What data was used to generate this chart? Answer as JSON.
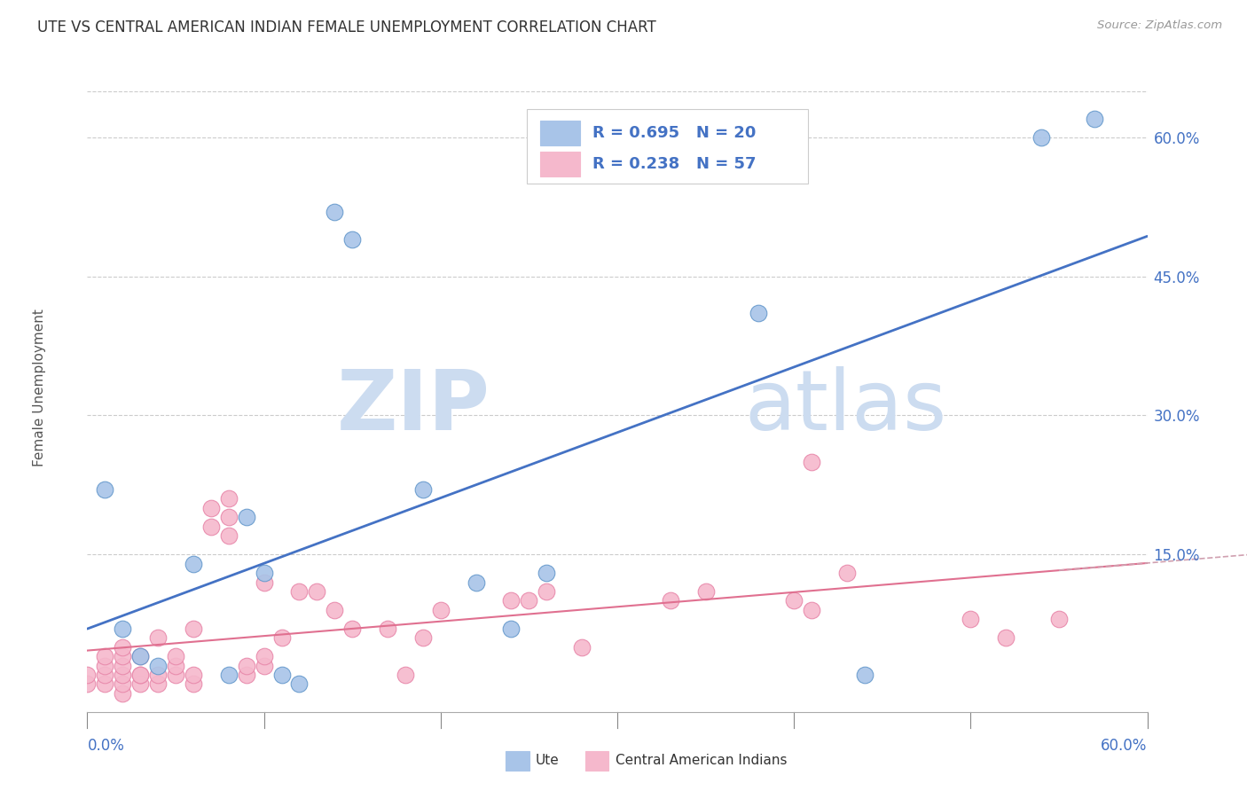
{
  "title": "UTE VS CENTRAL AMERICAN INDIAN FEMALE UNEMPLOYMENT CORRELATION CHART",
  "source": "Source: ZipAtlas.com",
  "ylabel": "Female Unemployment",
  "right_yticks": [
    0.0,
    0.15,
    0.3,
    0.45,
    0.6
  ],
  "right_ytick_labels": [
    "",
    "15.0%",
    "30.0%",
    "45.0%",
    "60.0%"
  ],
  "xlim": [
    0.0,
    0.6
  ],
  "ylim": [
    -0.02,
    0.68
  ],
  "ute_color": "#a8c4e8",
  "ute_edge_color": "#6699cc",
  "central_color": "#f5b8cc",
  "central_edge_color": "#e888aa",
  "ute_line_color": "#4472c4",
  "central_line_color": "#e07090",
  "central_dash_color": "#d0a0b0",
  "legend_text_color": "#4472c4",
  "ute_R": 0.695,
  "ute_N": 20,
  "central_R": 0.238,
  "central_N": 57,
  "watermark_zip": "ZIP",
  "watermark_atlas": "atlas",
  "watermark_color": "#ccdcf0",
  "background_color": "#ffffff",
  "grid_color": "#cccccc",
  "ute_x": [
    0.01,
    0.02,
    0.03,
    0.04,
    0.06,
    0.08,
    0.09,
    0.1,
    0.11,
    0.12,
    0.14,
    0.15,
    0.19,
    0.22,
    0.24,
    0.26,
    0.38,
    0.44,
    0.54,
    0.57
  ],
  "ute_y": [
    0.22,
    0.07,
    0.04,
    0.03,
    0.14,
    0.02,
    0.19,
    0.13,
    0.02,
    0.01,
    0.52,
    0.49,
    0.22,
    0.12,
    0.07,
    0.13,
    0.41,
    0.02,
    0.6,
    0.62
  ],
  "central_x": [
    0.0,
    0.0,
    0.01,
    0.01,
    0.01,
    0.01,
    0.02,
    0.02,
    0.02,
    0.02,
    0.02,
    0.02,
    0.03,
    0.03,
    0.03,
    0.03,
    0.04,
    0.04,
    0.04,
    0.05,
    0.05,
    0.05,
    0.06,
    0.06,
    0.06,
    0.07,
    0.07,
    0.08,
    0.08,
    0.08,
    0.09,
    0.09,
    0.1,
    0.1,
    0.1,
    0.11,
    0.12,
    0.13,
    0.14,
    0.15,
    0.17,
    0.18,
    0.19,
    0.2,
    0.24,
    0.25,
    0.26,
    0.28,
    0.33,
    0.35,
    0.4,
    0.41,
    0.41,
    0.43,
    0.5,
    0.52,
    0.55
  ],
  "central_y": [
    0.01,
    0.02,
    0.01,
    0.02,
    0.03,
    0.04,
    0.0,
    0.01,
    0.02,
    0.03,
    0.04,
    0.05,
    0.01,
    0.02,
    0.02,
    0.04,
    0.01,
    0.02,
    0.06,
    0.02,
    0.03,
    0.04,
    0.01,
    0.02,
    0.07,
    0.18,
    0.2,
    0.19,
    0.21,
    0.17,
    0.02,
    0.03,
    0.03,
    0.04,
    0.12,
    0.06,
    0.11,
    0.11,
    0.09,
    0.07,
    0.07,
    0.02,
    0.06,
    0.09,
    0.1,
    0.1,
    0.11,
    0.05,
    0.1,
    0.11,
    0.1,
    0.09,
    0.25,
    0.13,
    0.08,
    0.06,
    0.08
  ]
}
